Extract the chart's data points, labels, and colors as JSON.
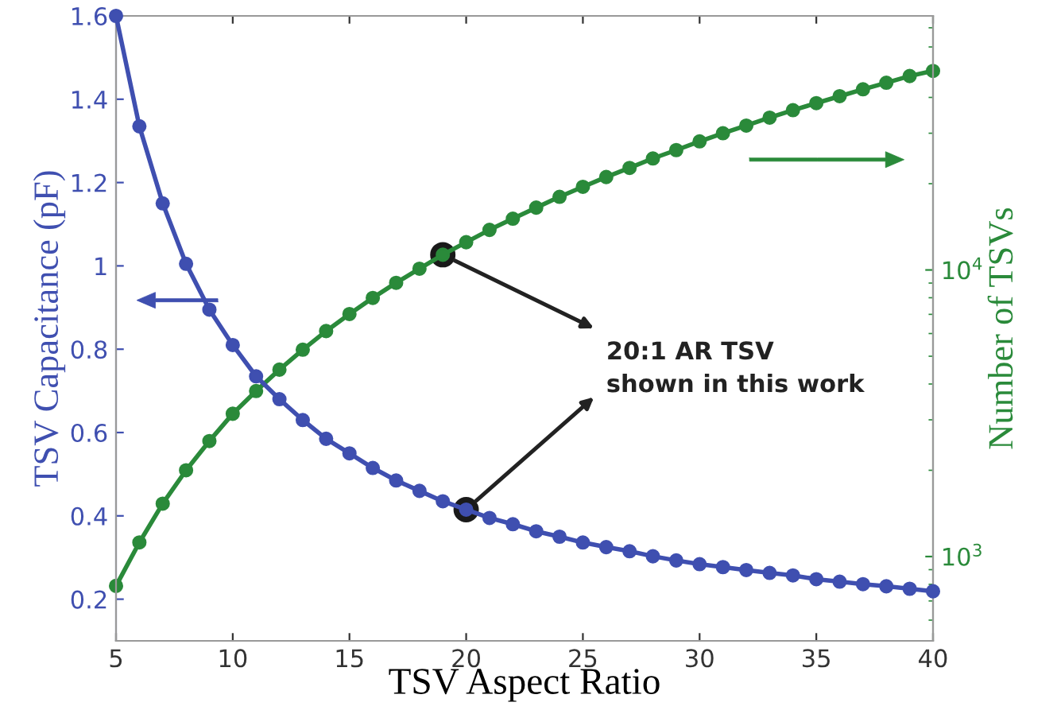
{
  "chart_data": {
    "type": "line",
    "xlabel": "TSV Aspect Ratio",
    "ylabel": "TSV Capacitance (pF)",
    "y2label": "Number of TSVs",
    "x": [
      5,
      6,
      7,
      8,
      9,
      10,
      11,
      12,
      13,
      14,
      15,
      16,
      17,
      18,
      19,
      20,
      21,
      22,
      23,
      24,
      25,
      26,
      27,
      28,
      29,
      30,
      31,
      32,
      33,
      34,
      35,
      36,
      37,
      38,
      39,
      40
    ],
    "series": [
      {
        "color": "#3f4fb0",
        "values": [
          1.6,
          1.335,
          1.15,
          1.005,
          0.895,
          0.81,
          0.735,
          0.68,
          0.63,
          0.585,
          0.55,
          0.515,
          0.485,
          0.46,
          0.435,
          0.415,
          0.395,
          0.38,
          0.363,
          0.35,
          0.336,
          0.325,
          0.315,
          0.303,
          0.293,
          0.284,
          0.277,
          0.27,
          0.263,
          0.257,
          0.248,
          0.242,
          0.236,
          0.231,
          0.225,
          0.219
        ]
      },
      {
        "color": "#2a8a3a",
        "axis": "y2",
        "values": [
          790,
          1120,
          1530,
          2000,
          2530,
          3150,
          3780,
          4490,
          5270,
          6120,
          7020,
          7990,
          9020,
          10100,
          11300,
          12500,
          13800,
          15100,
          16500,
          18000,
          19500,
          21100,
          22700,
          24500,
          26200,
          28100,
          30000,
          31900,
          34000,
          36100,
          38200,
          40400,
          42700,
          45000,
          47500,
          49500
        ]
      },
      {
        "type": "scatter",
        "color": "#1a1a1a",
        "x": [
          19
        ],
        "axis": "y2",
        "values": [
          11300
        ]
      },
      {
        "type": "scatter",
        "color": "#1a1a1a",
        "x": [
          20
        ],
        "values": [
          0.415
        ]
      }
    ],
    "xlim": [
      5,
      40
    ],
    "xticks": [
      5,
      10,
      15,
      20,
      25,
      30,
      35,
      40
    ],
    "ylim": [
      0.1,
      1.6
    ],
    "yticks": [
      0.2,
      0.4,
      0.6,
      0.8,
      1,
      1.2,
      1.4,
      1.6
    ],
    "y2lim": [
      508,
      77000
    ],
    "y2ticks": [
      {
        "value": 1000,
        "label": "10$^{3}$"
      },
      {
        "value": 10000,
        "label": "10$^{4}$"
      }
    ],
    "log": "y2",
    "marker": "circle",
    "line_style": "solid",
    "grid": false,
    "annotations": [
      "20:1 AR TSV\nshown in this work"
    ]
  }
}
